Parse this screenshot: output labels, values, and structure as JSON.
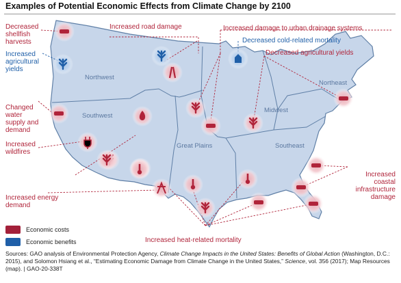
{
  "title": "Examples of Potential Economic Effects from Climate Change by 2100",
  "colors": {
    "cost": "#b0243a",
    "benefit": "#1f5fa8",
    "map_fill": "#c7d6ea",
    "map_stroke": "#5f7fa6"
  },
  "regions": [
    "Northwest",
    "Southwest",
    "Great Plains",
    "Midwest",
    "Southeast",
    "Northeast"
  ],
  "labels": {
    "shellfish": "Decreased\nshellfish\nharvests",
    "ag_yields_up": "Increased\nagricultural\nyields",
    "road": "Increased road damage",
    "urban_drainage": "Increased damage to urban drainage systems",
    "cold_mortality": "Decreased cold-related mortality",
    "ag_yields_down": "Decreased agricultural yields",
    "water_supply": "Changed\nwater\nsupply and\ndemand",
    "wildfires": "Increased\nwildfires",
    "energy": "Increased energy\ndemand",
    "heat_mortality": "Increased heat-related mortality",
    "coastal": "Increased\ncoastal\ninfrastructure\ndamage"
  },
  "legend": {
    "costs": "Economic costs",
    "benefits": "Economic benefits"
  },
  "source": {
    "a": "Sources: GAO analysis of Environmental Protection Agency, ",
    "b": "Climate Change Impacts in the United States: Benefits of Global Action",
    "c": " (Washington, D.C.: 2015), and Solomon Hsiang et al., “Estimating Economic Damage from Climate Change in the United States,” ",
    "d": "Science",
    "e": ", vol. 356 (2017); Map Resources (map).  |  GAO-20-338T"
  },
  "icons": [
    "shellfish-icon",
    "wheat-icon",
    "wheat-icon",
    "road-icon",
    "building-icon",
    "faucet-icon",
    "fire-icon",
    "wheat-icon",
    "thermometer-icon",
    "wheat-icon",
    "tractor-icon",
    "wheat-icon",
    "plug-icon",
    "wheat-icon",
    "thermometer-icon",
    "power-tower-icon",
    "thermometer-icon",
    "wheat-icon",
    "thermometer-icon",
    "bridge-icon",
    "bridge-icon",
    "car-icon",
    "bridge-icon",
    "bridge-icon",
    "thermometer-icon"
  ]
}
